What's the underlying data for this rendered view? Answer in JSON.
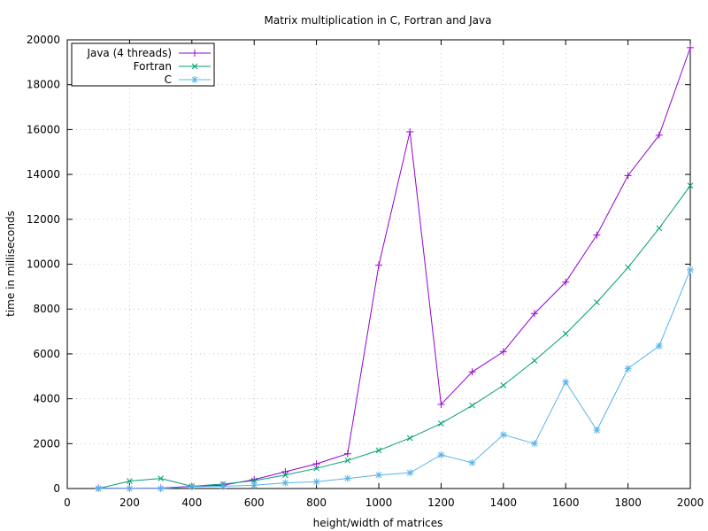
{
  "chart_data": {
    "type": "line",
    "title": "Matrix multiplication in C, Fortran and Java",
    "xlabel": "height/width of matrices",
    "ylabel": "time in milliseconds",
    "xlim": [
      0,
      2000
    ],
    "ylim": [
      0,
      20000
    ],
    "xticks": [
      0,
      200,
      400,
      600,
      800,
      1000,
      1200,
      1400,
      1600,
      1800,
      2000
    ],
    "yticks": [
      0,
      2000,
      4000,
      6000,
      8000,
      10000,
      12000,
      14000,
      16000,
      18000,
      20000
    ],
    "grid": true,
    "legend_position": "top-left",
    "x": [
      100,
      200,
      300,
      400,
      500,
      600,
      700,
      800,
      900,
      1000,
      1100,
      1200,
      1300,
      1400,
      1500,
      1600,
      1700,
      1800,
      1900,
      2000
    ],
    "series": [
      {
        "name": "Java (4 threads)",
        "color": "#9400d3",
        "marker": "plus",
        "values": [
          20,
          10,
          20,
          100,
          150,
          400,
          750,
          1100,
          1550,
          9950,
          15900,
          3750,
          5200,
          6100,
          7800,
          9200,
          11300,
          13950,
          15750,
          19650
        ]
      },
      {
        "name": "Fortran",
        "color": "#009e73",
        "marker": "cross",
        "values": [
          0,
          330,
          450,
          100,
          200,
          350,
          600,
          900,
          1250,
          1700,
          2250,
          2900,
          3700,
          4600,
          5700,
          6900,
          8300,
          9850,
          11600,
          13500
        ]
      },
      {
        "name": "C",
        "color": "#56b4e9",
        "marker": "star",
        "values": [
          0,
          0,
          0,
          80,
          100,
          150,
          250,
          300,
          450,
          600,
          700,
          1500,
          1150,
          2400,
          2000,
          4750,
          2600,
          5350,
          6350,
          9750
        ]
      }
    ]
  }
}
